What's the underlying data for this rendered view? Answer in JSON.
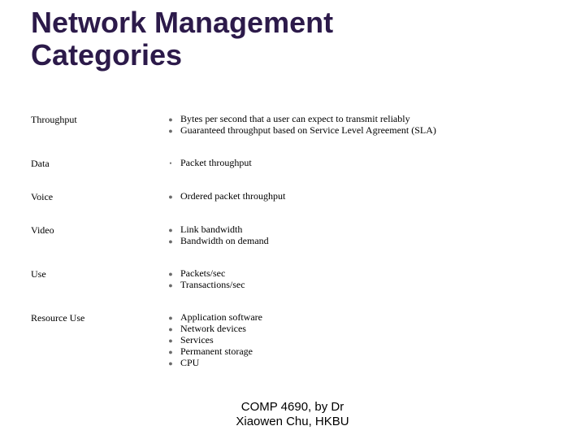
{
  "title_line1": "Network Management",
  "title_line2": "Categories",
  "rows": [
    {
      "label": "Throughput",
      "items": [
        "Bytes per second that a user can expect to transmit reliably",
        "Guaranteed throughput based on Service Level Agreement (SLA)"
      ]
    },
    {
      "label": "Data",
      "items": [
        "Packet throughput"
      ]
    },
    {
      "label": "Voice",
      "items": [
        "Ordered packet throughput"
      ]
    },
    {
      "label": "Video",
      "items": [
        "Link bandwidth",
        "Bandwidth on demand"
      ]
    },
    {
      "label": "Use",
      "items": [
        "Packets/sec",
        "Transactions/sec"
      ]
    },
    {
      "label": "Resource Use",
      "items": [
        "Application software",
        "Network devices",
        "Services",
        "Permanent storage",
        "CPU"
      ]
    }
  ],
  "footer_line1": "COMP 4690, by Dr",
  "footer_line2": "Xiaowen Chu,  HKBU",
  "colors": {
    "title": "#2c1a4a",
    "text": "#000000",
    "bullet": "#6a6a6a",
    "background": "#ffffff"
  },
  "fonts": {
    "title_family": "Arial",
    "title_size_pt": 28,
    "body_family": "Times New Roman",
    "body_size_pt": 9,
    "footer_family": "Arial",
    "footer_size_pt": 12
  }
}
